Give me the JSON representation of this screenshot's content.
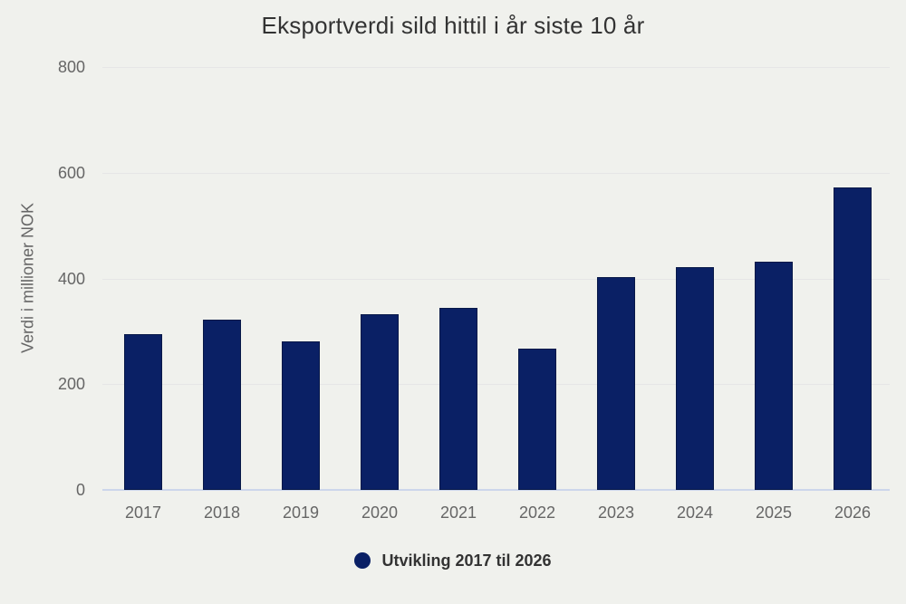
{
  "chart_data": {
    "type": "bar",
    "title": "Eksportverdi sild hittil i år siste 10 år",
    "xlabel": "",
    "ylabel": "Verdi i millioner NOK",
    "categories": [
      "2017",
      "2018",
      "2019",
      "2020",
      "2021",
      "2022",
      "2023",
      "2024",
      "2025",
      "2026"
    ],
    "series": [
      {
        "name": "Utvikling 2017 til 2026",
        "values": [
          294,
          322,
          281,
          332,
          344,
          268,
          402,
          421,
          431,
          572
        ]
      }
    ],
    "ylim": [
      0,
      800
    ],
    "yticks": [
      0,
      200,
      400,
      600,
      800
    ],
    "grid": true,
    "legend_position": "bottom-center",
    "colors": {
      "bar": "#0a2065",
      "bar_border": "#071848",
      "background": "#f0f1ed",
      "gridline": "#e6e6e6",
      "axis_line": "#ccd6eb",
      "tick_label": "#666666",
      "title": "#333333"
    }
  }
}
